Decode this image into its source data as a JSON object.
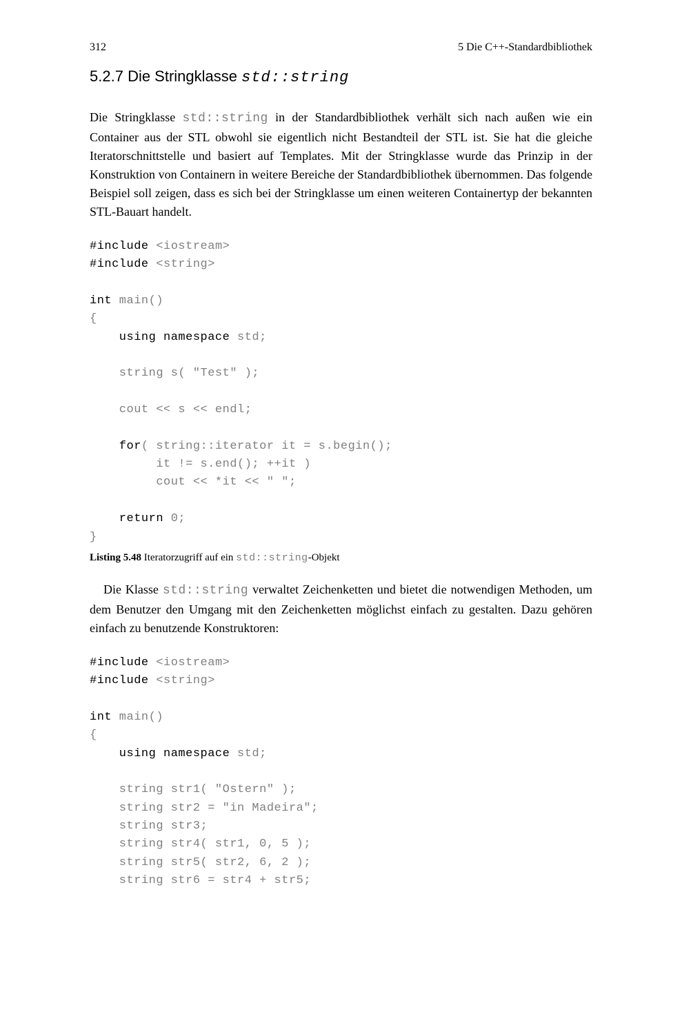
{
  "header": {
    "page_number": "312",
    "chapter": "5  Die C++-Standardbibliothek"
  },
  "section": {
    "number": "5.2.7",
    "title_prefix": "Die Stringklasse ",
    "title_code": "std::string"
  },
  "paragraph1": {
    "part1": "Die Stringklasse ",
    "code1": "std::string",
    "part2": " in der Standardbibliothek verhält sich nach außen wie ein Container aus der STL obwohl sie eigentlich nicht Bestandteil der STL ist. Sie hat die gleiche Iteratorschnittstelle und basiert auf Templates. Mit der Stringklasse wurde das Prinzip in der Konstruktion von Containern in weitere Bereiche der Standardbibliothek übernommen. Das folgende Beispiel soll zeigen, dass es sich bei der Stringklasse um einen weiteren Containertyp der bekannten STL-Bauart handelt."
  },
  "code1": {
    "line1_k": "#include",
    "line1_r": " <iostream>",
    "line2_k": "#include",
    "line2_r": " <string>",
    "blank": "",
    "line3_k": "int",
    "line3_r": " main()",
    "line4": "{",
    "line5_k": "    using namespace",
    "line5_r": " std;",
    "line6": "    string s( \"Test\" );",
    "line7": "    cout << s << endl;",
    "line8_k": "    for",
    "line8_r": "( string::iterator it = s.begin();",
    "line9": "         it != s.end(); ++it )",
    "line10": "         cout << *it << \" \";",
    "line11_k": "    return",
    "line11_r": " 0;",
    "line12": "}"
  },
  "listing": {
    "label": "Listing 5.48",
    "text_before": "  Iteratorzugriff auf ein ",
    "code": "std::string",
    "text_after": "-Objekt"
  },
  "paragraph2": {
    "part1": "Die Klasse ",
    "code1": "std::string",
    "part2": " verwaltet Zeichenketten und bietet die notwendigen Methoden, um dem Benutzer den Umgang mit den Zeichenketten möglichst einfach zu gestalten. Dazu gehören einfach zu benutzende Konstruktoren:"
  },
  "code2": {
    "line1_k": "#include",
    "line1_r": " <iostream>",
    "line2_k": "#include",
    "line2_r": " <string>",
    "line3_k": "int",
    "line3_r": " main()",
    "line4": "{",
    "line5_k": "    using namespace",
    "line5_r": " std;",
    "line6": "    string str1( \"Ostern\" );",
    "line7": "    string str2 = \"in Madeira\";",
    "line8": "    string str3;",
    "line9": "    string str4( str1, 0, 5 );",
    "line10": "    string str5( str2, 6, 2 );",
    "line11": "    string str6 = str4 + str5;"
  }
}
